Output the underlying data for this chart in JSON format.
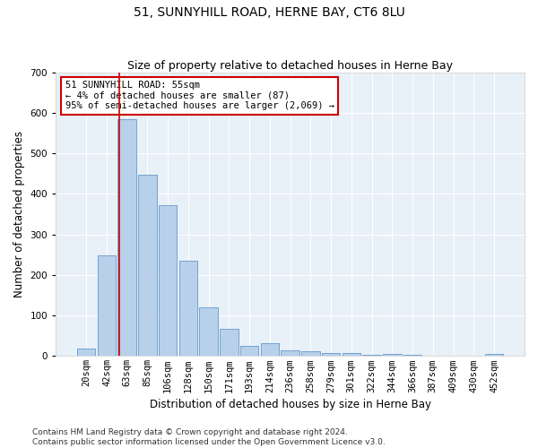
{
  "title": "51, SUNNYHILL ROAD, HERNE BAY, CT6 8LU",
  "subtitle": "Size of property relative to detached houses in Herne Bay",
  "xlabel": "Distribution of detached houses by size in Herne Bay",
  "ylabel": "Number of detached properties",
  "bar_labels": [
    "20sqm",
    "42sqm",
    "63sqm",
    "85sqm",
    "106sqm",
    "128sqm",
    "150sqm",
    "171sqm",
    "193sqm",
    "214sqm",
    "236sqm",
    "258sqm",
    "279sqm",
    "301sqm",
    "322sqm",
    "344sqm",
    "366sqm",
    "387sqm",
    "409sqm",
    "430sqm",
    "452sqm"
  ],
  "bar_values": [
    18,
    248,
    585,
    448,
    373,
    235,
    120,
    68,
    25,
    32,
    14,
    11,
    8,
    8,
    3,
    5,
    2,
    0,
    0,
    0,
    5
  ],
  "bar_color": "#b8d0ea",
  "bar_edge_color": "#6699cc",
  "background_color": "#e8f0f8",
  "grid_color": "#ffffff",
  "annotation_text": "51 SUNNYHILL ROAD: 55sqm\n← 4% of detached houses are smaller (87)\n95% of semi-detached houses are larger (2,069) →",
  "annotation_box_color": "#ffffff",
  "annotation_box_edge": "#cc0000",
  "vline_color": "#cc0000",
  "vline_x": 1.62,
  "ylim": [
    0,
    700
  ],
  "yticks": [
    0,
    100,
    200,
    300,
    400,
    500,
    600,
    700
  ],
  "footer": "Contains HM Land Registry data © Crown copyright and database right 2024.\nContains public sector information licensed under the Open Government Licence v3.0.",
  "title_fontsize": 10,
  "subtitle_fontsize": 9,
  "axis_label_fontsize": 8.5,
  "tick_fontsize": 7.5,
  "annotation_fontsize": 7.5,
  "footer_fontsize": 6.5
}
